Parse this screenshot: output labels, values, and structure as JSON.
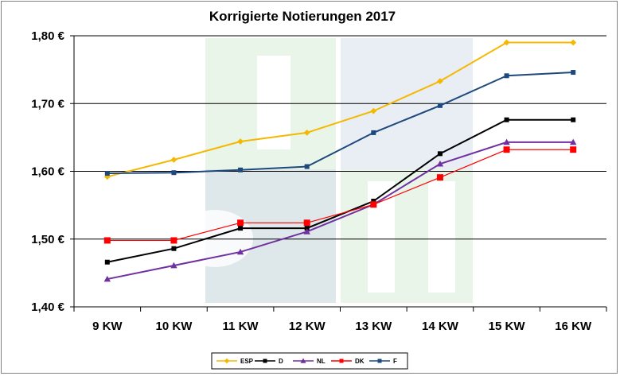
{
  "chart_data": {
    "type": "line",
    "title": "Korrigierte Notierungen 2017",
    "xlabel": "",
    "ylabel": "",
    "categories": [
      "9 KW",
      "10 KW",
      "11 KW",
      "12 KW",
      "13 KW",
      "14 KW",
      "15 KW",
      "16 KW"
    ],
    "ylim": [
      1.4,
      1.8
    ],
    "yticks": [
      1.4,
      1.5,
      1.6,
      1.7,
      1.8
    ],
    "ytick_labels": [
      "1,40 €",
      "1,50 €",
      "1,60 €",
      "1,70 €",
      "1,80 €"
    ],
    "grid": true,
    "legend_position": "bottom",
    "series": [
      {
        "name": "ESP",
        "color": "#f5b800",
        "marker": "diamond",
        "values": [
          1.592,
          1.617,
          1.644,
          1.657,
          1.689,
          1.733,
          1.79,
          1.79
        ]
      },
      {
        "name": "D",
        "color": "#000000",
        "marker": "square",
        "values": [
          1.466,
          1.486,
          1.516,
          1.516,
          1.556,
          1.626,
          1.676,
          1.676
        ]
      },
      {
        "name": "NL",
        "color": "#7030a0",
        "marker": "triangle",
        "values": [
          1.441,
          1.461,
          1.481,
          1.511,
          1.551,
          1.611,
          1.643,
          1.643
        ]
      },
      {
        "name": "DK",
        "color": "#ff0000",
        "marker": "square",
        "values": [
          1.498,
          1.498,
          1.524,
          1.524,
          1.551,
          1.591,
          1.632,
          1.632
        ]
      },
      {
        "name": "F",
        "color": "#1f497d",
        "marker": "square",
        "values": [
          1.597,
          1.598,
          1.602,
          1.607,
          1.657,
          1.697,
          1.741,
          1.746
        ]
      }
    ]
  }
}
